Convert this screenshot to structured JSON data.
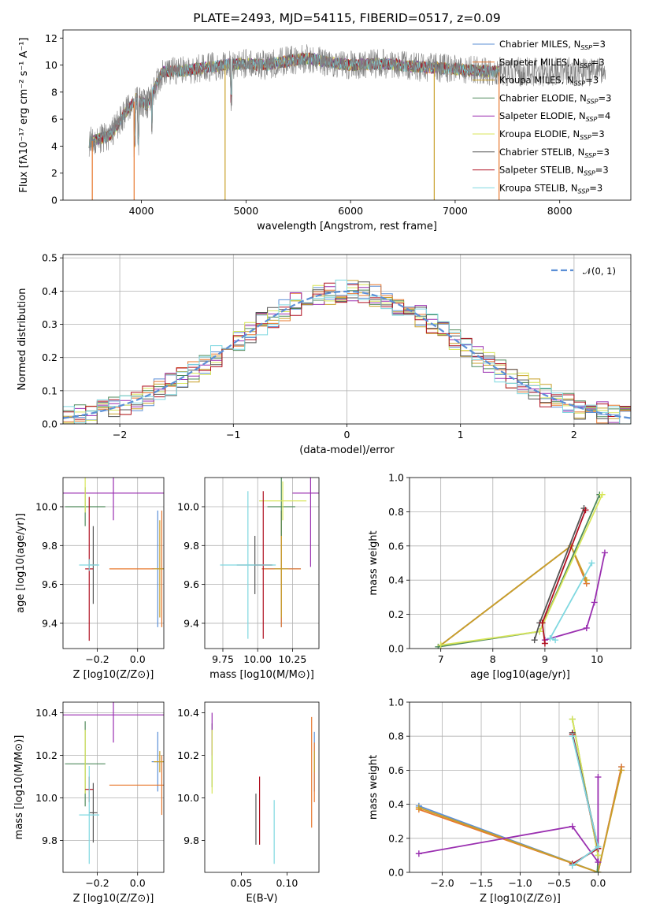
{
  "colors": {
    "Chabrier MILES": "#5b8fd6",
    "Salpeter MILES": "#e8782e",
    "Kroupa MILES": "#c8a02a",
    "Chabrier ELODIE": "#4f8a5b",
    "Salpeter ELODIE": "#9a2fb0",
    "Kroupa ELODIE": "#d8e65a",
    "Chabrier STELIB": "#555555",
    "Salpeter STELIB": "#b01020",
    "Kroupa STELIB": "#7fd8e0",
    "gaussian": "#5b8fd6",
    "spectrum_data": "#808080"
  },
  "chart_data": [
    {
      "id": "spectrum",
      "type": "line",
      "title": "PLATE=2493, MJD=54115, FIBERID=0517, z=0.09",
      "xlabel": "wavelength [Angstrom, rest frame]",
      "ylabel": "Flux [fλ10⁻¹⁷ erg cm⁻² s⁻¹ A⁻¹]",
      "xlim": [
        3250,
        8680
      ],
      "ylim": [
        0,
        12.6
      ],
      "xticks": [
        4000,
        5000,
        6000,
        7000,
        8000
      ],
      "yticks": [
        0,
        2,
        4,
        6,
        8,
        10,
        12
      ],
      "legend_position": "right",
      "legend": [
        "Chabrier MILES, N_SSP=3",
        "Salpeter MILES, N_SSP=3",
        "Kroupa MILES, N_SSP=3",
        "Chabrier ELODIE, N_SSP=3",
        "Salpeter ELODIE, N_SSP=4",
        "Kroupa ELODIE, N_SSP=3",
        "Chabrier STELIB, N_SSP=3",
        "Salpeter STELIB, N_SSP=3",
        "Kroupa STELIB, N_SSP=3"
      ],
      "continuum": [
        [
          3500,
          4.3
        ],
        [
          3700,
          4.8
        ],
        [
          3850,
          6.5
        ],
        [
          3950,
          7.5
        ],
        [
          4050,
          7.0
        ],
        [
          4200,
          9.5
        ],
        [
          4400,
          9.6
        ],
        [
          4600,
          9.8
        ],
        [
          4800,
          10.0
        ],
        [
          5000,
          10.1
        ],
        [
          5200,
          10.0
        ],
        [
          5400,
          10.3
        ],
        [
          5600,
          10.5
        ],
        [
          5800,
          10.2
        ],
        [
          6000,
          10.0
        ],
        [
          6300,
          10.1
        ],
        [
          6600,
          9.9
        ],
        [
          7000,
          9.7
        ],
        [
          7400,
          9.5
        ],
        [
          7420,
          9.5
        ]
      ],
      "dips": [
        [
          3530,
          0
        ],
        [
          3930,
          0
        ],
        [
          4800,
          0
        ],
        [
          6800,
          0
        ],
        [
          7420,
          0
        ]
      ]
    },
    {
      "id": "residuals",
      "type": "line",
      "xlabel": "(data-model)/error",
      "ylabel": "Normed distribution",
      "xlim": [
        -2.5,
        2.5
      ],
      "ylim": [
        0,
        0.51
      ],
      "xticks": [
        -2,
        -1,
        0,
        1,
        2
      ],
      "yticks": [
        0.0,
        0.1,
        0.2,
        0.3,
        0.4,
        0.5
      ],
      "legend": [
        "𝒩(0, 1)"
      ],
      "legend_position": "top-right",
      "grid": true
    },
    {
      "id": "age_vs_Z",
      "type": "scatter",
      "xlabel": "Z [log10(Z/Z⊙)]",
      "ylabel": "age  [log10(age/yr)]",
      "xlim": [
        -0.37,
        0.13
      ],
      "ylim": [
        9.27,
        10.15
      ],
      "xticks": [
        -0.2,
        0.0
      ],
      "yticks": [
        9.4,
        9.6,
        9.8,
        10.0
      ],
      "grid": true,
      "points": [
        {
          "model": "Chabrier MILES",
          "x": 0.1,
          "y": 9.68,
          "xerr": 0.03,
          "yerr": 0.3
        },
        {
          "model": "Salpeter MILES",
          "x": 0.12,
          "y": 9.68,
          "xerr": 0.26,
          "yerr": 0.3
        },
        {
          "model": "Kroupa MILES",
          "x": 0.11,
          "y": 9.68,
          "xerr": 0.03,
          "yerr": 0.25
        },
        {
          "model": "Chabrier ELODIE",
          "x": -0.26,
          "y": 10.0,
          "xerr": 0.1,
          "yerr": 0.1
        },
        {
          "model": "Salpeter ELODIE",
          "x": -0.12,
          "y": 10.07,
          "xerr": 0.25,
          "yerr": 0.14
        },
        {
          "model": "Kroupa ELODIE",
          "x": -0.26,
          "y": 10.07,
          "xerr": 0.0,
          "yerr": 0.1
        },
        {
          "model": "Chabrier STELIB",
          "x": -0.22,
          "y": 9.7,
          "xerr": 0.02,
          "yerr": 0.2
        },
        {
          "model": "Salpeter STELIB",
          "x": -0.24,
          "y": 9.68,
          "xerr": 0.02,
          "yerr": 0.37
        },
        {
          "model": "Kroupa STELIB",
          "x": -0.24,
          "y": 9.7,
          "xerr": 0.05,
          "yerr": 0.03
        }
      ]
    },
    {
      "id": "age_vs_mass",
      "type": "scatter",
      "xlabel": "mass [log10(M/M⊙)]",
      "xlim": [
        9.62,
        10.44
      ],
      "ylim": [
        9.27,
        10.15
      ],
      "xticks": [
        9.75,
        10.0,
        10.25
      ],
      "yticks": [
        9.4,
        9.6,
        9.8,
        10.0
      ],
      "grid": true,
      "points": [
        {
          "model": "Chabrier MILES",
          "x": 10.17,
          "y": 9.68,
          "xerr": 0.14,
          "yerr": 0.3
        },
        {
          "model": "Salpeter MILES",
          "x": 10.17,
          "y": 9.68,
          "xerr": 0.14,
          "yerr": 0.3
        },
        {
          "model": "Kroupa MILES",
          "x": 10.17,
          "y": 9.68,
          "xerr": 0.05,
          "yerr": 0.25
        },
        {
          "model": "Chabrier ELODIE",
          "x": 10.17,
          "y": 10.0,
          "xerr": 0.1,
          "yerr": 0.15
        },
        {
          "model": "Salpeter ELODIE",
          "x": 10.38,
          "y": 10.07,
          "xerr": 0.13,
          "yerr": 0.38
        },
        {
          "model": "Kroupa ELODIE",
          "x": 10.18,
          "y": 10.03,
          "xerr": 0.17,
          "yerr": 0.1
        },
        {
          "model": "Chabrier STELIB",
          "x": 9.98,
          "y": 9.7,
          "xerr": 0.13,
          "yerr": 0.15
        },
        {
          "model": "Salpeter STELIB",
          "x": 10.04,
          "y": 9.7,
          "xerr": 0.06,
          "yerr": 0.38
        },
        {
          "model": "Kroupa STELIB",
          "x": 9.93,
          "y": 9.7,
          "xerr": 0.2,
          "yerr": 0.38
        }
      ]
    },
    {
      "id": "mass_weight_vs_age",
      "type": "line",
      "xlabel": "age  [log10(age/yr)]",
      "ylabel": "mass weight",
      "xlim": [
        6.4,
        10.65
      ],
      "ylim": [
        0,
        1.0
      ],
      "xticks": [
        7,
        8,
        9,
        10
      ],
      "yticks": [
        0.0,
        0.2,
        0.4,
        0.6,
        0.8,
        1.0
      ],
      "grid": true,
      "series": [
        {
          "model": "Chabrier MILES",
          "points": [
            [
              7.0,
              0.02
            ],
            [
              9.5,
              0.6
            ],
            [
              9.8,
              0.38
            ]
          ]
        },
        {
          "model": "Salpeter MILES",
          "points": [
            [
              7.0,
              0.02
            ],
            [
              9.5,
              0.6
            ],
            [
              9.8,
              0.38
            ]
          ]
        },
        {
          "model": "Kroupa MILES",
          "points": [
            [
              7.0,
              0.02
            ],
            [
              9.5,
              0.6
            ],
            [
              9.8,
              0.4
            ]
          ]
        },
        {
          "model": "Chabrier ELODIE",
          "points": [
            [
              6.95,
              0.01
            ],
            [
              8.9,
              0.1
            ],
            [
              10.05,
              0.9
            ]
          ]
        },
        {
          "model": "Salpeter ELODIE",
          "points": [
            [
              9.0,
              0.05
            ],
            [
              9.8,
              0.12
            ],
            [
              9.95,
              0.27
            ],
            [
              10.15,
              0.56
            ]
          ]
        },
        {
          "model": "Kroupa ELODIE",
          "points": [
            [
              7.0,
              0.02
            ],
            [
              8.9,
              0.1
            ],
            [
              10.1,
              0.9
            ]
          ]
        },
        {
          "model": "Chabrier STELIB",
          "points": [
            [
              8.8,
              0.05
            ],
            [
              8.9,
              0.15
            ],
            [
              9.75,
              0.82
            ]
          ]
        },
        {
          "model": "Salpeter STELIB",
          "points": [
            [
              9.0,
              0.03
            ],
            [
              8.95,
              0.15
            ],
            [
              9.78,
              0.81
            ]
          ]
        },
        {
          "model": "Kroupa STELIB",
          "points": [
            [
              9.2,
              0.05
            ],
            [
              9.1,
              0.06
            ],
            [
              9.9,
              0.5
            ]
          ]
        }
      ]
    },
    {
      "id": "mass_vs_Z",
      "type": "scatter",
      "xlabel": "Z [log10(Z/Z⊙)]",
      "ylabel": "mass [log10(M/M⊙)]",
      "xlim": [
        -0.37,
        0.13
      ],
      "ylim": [
        9.65,
        10.45
      ],
      "xticks": [
        -0.2,
        0.0
      ],
      "yticks": [
        9.8,
        10.0,
        10.2,
        10.4
      ],
      "grid": true,
      "points": [
        {
          "model": "Chabrier MILES",
          "x": 0.1,
          "y": 10.17,
          "xerr": 0.03,
          "yerr": 0.14
        },
        {
          "model": "Salpeter MILES",
          "x": 0.12,
          "y": 10.06,
          "xerr": 0.26,
          "yerr": 0.14
        },
        {
          "model": "Kroupa MILES",
          "x": 0.11,
          "y": 10.17,
          "xerr": 0.03,
          "yerr": 0.05
        },
        {
          "model": "Chabrier ELODIE",
          "x": -0.26,
          "y": 10.16,
          "xerr": 0.1,
          "yerr": 0.2
        },
        {
          "model": "Salpeter ELODIE",
          "x": -0.12,
          "y": 10.39,
          "xerr": 0.25,
          "yerr": 0.13
        },
        {
          "model": "Kroupa ELODIE",
          "x": -0.26,
          "y": 10.17,
          "xerr": 0.0,
          "yerr": 0.15
        },
        {
          "model": "Chabrier STELIB",
          "x": -0.22,
          "y": 9.93,
          "xerr": 0.02,
          "yerr": 0.14
        },
        {
          "model": "Salpeter STELIB",
          "x": -0.24,
          "y": 10.04,
          "xerr": 0.02,
          "yerr": 0.06
        },
        {
          "model": "Kroupa STELIB",
          "x": -0.24,
          "y": 9.92,
          "xerr": 0.05,
          "yerr": 0.23
        }
      ]
    },
    {
      "id": "mass_vs_ebv",
      "type": "scatter",
      "xlabel": "E(B-V)",
      "xlim": [
        0.01,
        0.135
      ],
      "ylim": [
        9.65,
        10.45
      ],
      "xticks": [
        0.05,
        0.1
      ],
      "yticks": [
        9.8,
        10.0,
        10.2,
        10.4
      ],
      "grid": false,
      "points": [
        {
          "model": "Chabrier MILES",
          "x": 0.13,
          "y": 10.17,
          "yerr": 0.14
        },
        {
          "model": "Salpeter MILES",
          "x": 0.13,
          "y": 10.12,
          "yerr": 0.14
        },
        {
          "model": "Kroupa MILES",
          "x": 0.13,
          "y": 10.17,
          "yerr": 0.05
        },
        {
          "model": "Chabrier ELODIE",
          "x": 0.018,
          "y": 10.2,
          "yerr": 0.15
        },
        {
          "model": "Salpeter ELODIE",
          "x": 0.018,
          "y": 10.3,
          "yerr": 0.1
        },
        {
          "model": "Kroupa ELODIE",
          "x": 0.018,
          "y": 10.17,
          "yerr": 0.15
        },
        {
          "model": "Chabrier STELIB",
          "x": 0.066,
          "y": 9.9,
          "yerr": 0.12
        },
        {
          "model": "Salpeter STELIB",
          "x": 0.07,
          "y": 9.94,
          "yerr": 0.16
        },
        {
          "model": "Kroupa STELIB",
          "x": 0.086,
          "y": 9.84,
          "yerr": 0.15
        },
        {
          "model": "Salpeter MILES",
          "x": 0.127,
          "y": 10.12,
          "yerr": 0.26
        }
      ]
    },
    {
      "id": "mass_weight_vs_Z",
      "type": "line",
      "xlabel": "Z [log10(Z/Z⊙)]",
      "ylabel": "mass weight",
      "xlim": [
        -2.42,
        0.42
      ],
      "ylim": [
        0,
        1.0
      ],
      "xticks": [
        -2.0,
        -1.5,
        -1.0,
        -0.5,
        0.0
      ],
      "yticks": [
        0.0,
        0.2,
        0.4,
        0.6,
        0.8,
        1.0
      ],
      "grid": true,
      "series": [
        {
          "model": "Chabrier MILES",
          "points": [
            [
              -2.3,
              0.39
            ],
            [
              0.0,
              0.0
            ],
            [
              0.3,
              0.62
            ]
          ]
        },
        {
          "model": "Salpeter MILES",
          "points": [
            [
              -2.3,
              0.37
            ],
            [
              0.0,
              0.0
            ],
            [
              0.3,
              0.62
            ]
          ]
        },
        {
          "model": "Kroupa MILES",
          "points": [
            [
              -2.3,
              0.38
            ],
            [
              0.0,
              0.0
            ],
            [
              0.3,
              0.6
            ]
          ]
        },
        {
          "model": "Chabrier ELODIE",
          "points": [
            [
              -0.33,
              0.9
            ],
            [
              0.0,
              0.1
            ],
            [
              -0.01,
              0.0
            ]
          ]
        },
        {
          "model": "Salpeter ELODIE",
          "points": [
            [
              -2.3,
              0.11
            ],
            [
              -0.33,
              0.27
            ],
            [
              0.0,
              0.06
            ],
            [
              0.0,
              0.56
            ]
          ]
        },
        {
          "model": "Kroupa ELODIE",
          "points": [
            [
              -0.33,
              0.9
            ],
            [
              0.0,
              0.1
            ]
          ]
        },
        {
          "model": "Chabrier STELIB",
          "points": [
            [
              -0.33,
              0.82
            ],
            [
              0.0,
              0.15
            ],
            [
              -0.33,
              0.04
            ]
          ]
        },
        {
          "model": "Salpeter STELIB",
          "points": [
            [
              -0.33,
              0.81
            ],
            [
              0.0,
              0.14
            ],
            [
              -0.33,
              0.05
            ]
          ]
        },
        {
          "model": "Kroupa STELIB",
          "points": [
            [
              -0.33,
              0.8
            ],
            [
              0.0,
              0.15
            ],
            [
              -0.33,
              0.04
            ]
          ]
        }
      ]
    }
  ]
}
